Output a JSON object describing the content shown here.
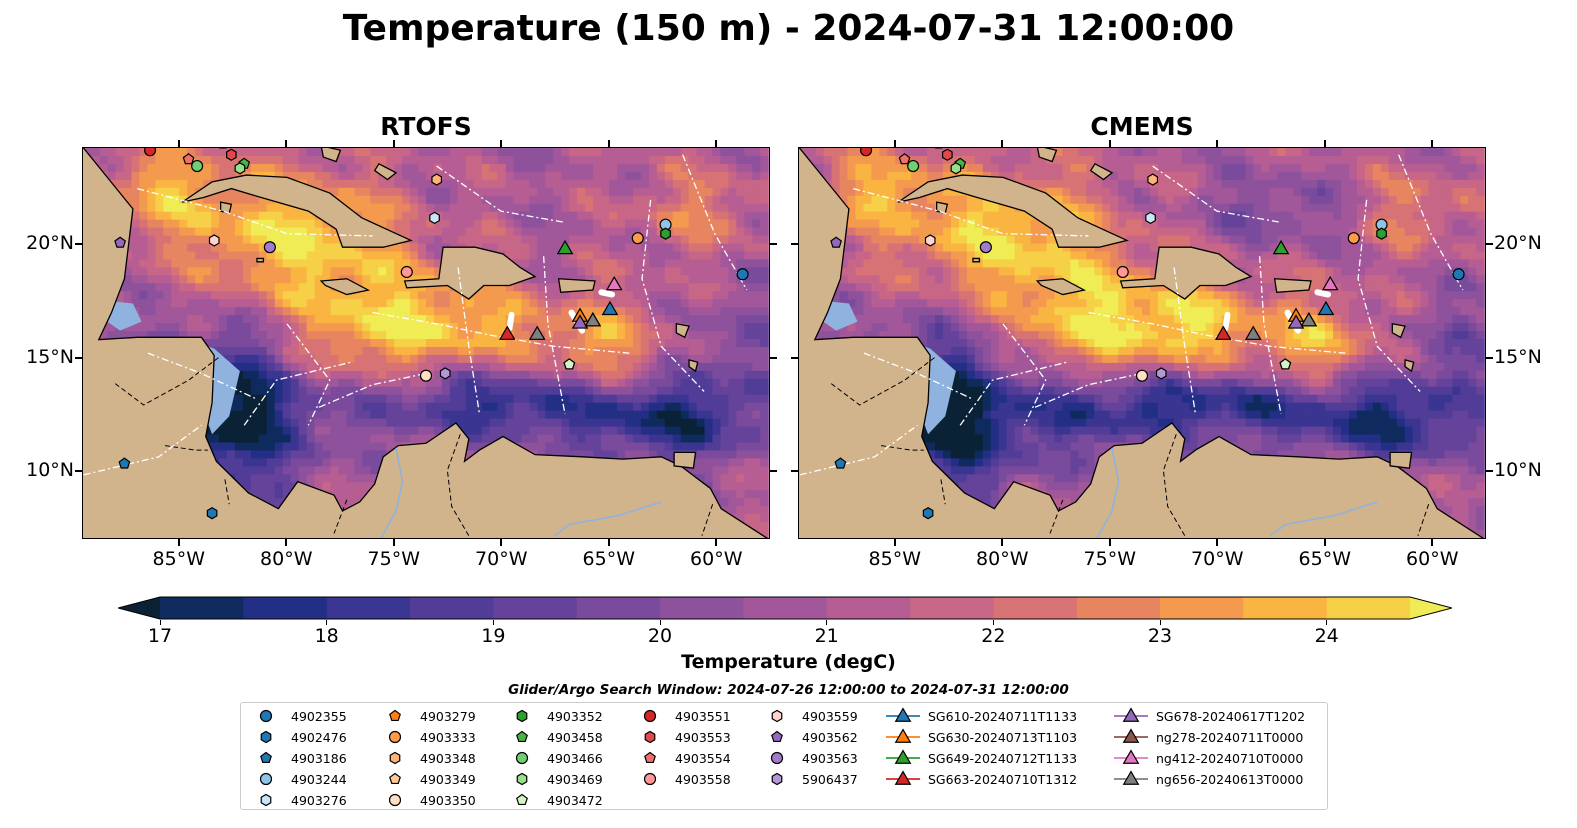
{
  "title": "Temperature (150 m) - 2024-07-31 12:00:00",
  "panels": [
    {
      "title": "RTOFS"
    },
    {
      "title": "CMEMS"
    }
  ],
  "axes": {
    "lon_range": [
      -89.5,
      -57.5
    ],
    "lat_range": [
      7,
      24.3
    ],
    "x_ticks": [
      "85°W",
      "80°W",
      "75°W",
      "70°W",
      "65°W",
      "60°W"
    ],
    "x_tick_values": [
      -85,
      -80,
      -75,
      -70,
      -65,
      -60
    ],
    "y_ticks": [
      "20°N",
      "15°N",
      "10°N"
    ],
    "y_tick_values": [
      20,
      15,
      10
    ]
  },
  "colorbar": {
    "label": "Temperature (degC)",
    "ticks": [
      "17",
      "18",
      "19",
      "20",
      "21",
      "22",
      "23",
      "24"
    ],
    "tick_values": [
      17,
      18,
      19,
      20,
      21,
      22,
      23,
      24
    ],
    "min": 17,
    "max": 24.5,
    "step": 0.5,
    "colors": [
      "#0b2236",
      "#0f2b5e",
      "#232f85",
      "#3a3591",
      "#513d97",
      "#65439a",
      "#7a4a9c",
      "#8e519b",
      "#a2579a",
      "#b65e93",
      "#c76686",
      "#d87375",
      "#e88561",
      "#f49a4f",
      "#f9b441",
      "#f6d046",
      "#f0ec55"
    ]
  },
  "legend": {
    "title": "Glider/Argo Search Window: 2024-07-26 12:00:00 to 2024-07-31 12:00:00",
    "items": [
      {
        "label": "4902355",
        "marker": "circle",
        "color": "#1f77b4"
      },
      {
        "label": "4902476",
        "marker": "hexagon",
        "color": "#1f77b4"
      },
      {
        "label": "4903186",
        "marker": "pentagon",
        "color": "#1f77b4"
      },
      {
        "label": "4903244",
        "marker": "circle",
        "color": "#8fc3e8"
      },
      {
        "label": "4903276",
        "marker": "hexagon",
        "color": "#c8e6f9"
      },
      {
        "label": "4903279",
        "marker": "pentagon",
        "color": "#ff7f0e"
      },
      {
        "label": "4903333",
        "marker": "circle",
        "color": "#ff9b4a"
      },
      {
        "label": "4903348",
        "marker": "hexagon",
        "color": "#ffb377"
      },
      {
        "label": "4903349",
        "marker": "pentagon",
        "color": "#ffc897"
      },
      {
        "label": "4903350",
        "marker": "circle",
        "color": "#ffe0c4"
      },
      {
        "label": "4903352",
        "marker": "hexagon",
        "color": "#2ca02c"
      },
      {
        "label": "4903458",
        "marker": "pentagon",
        "color": "#45b545"
      },
      {
        "label": "4903466",
        "marker": "circle",
        "color": "#6fd06f"
      },
      {
        "label": "4903469",
        "marker": "hexagon",
        "color": "#98df8a"
      },
      {
        "label": "4903472",
        "marker": "pentagon",
        "color": "#d2f5c8"
      },
      {
        "label": "4903551",
        "marker": "circle",
        "color": "#d62728"
      },
      {
        "label": "4903553",
        "marker": "hexagon",
        "color": "#e04a4b"
      },
      {
        "label": "4903554",
        "marker": "pentagon",
        "color": "#ef6e6e"
      },
      {
        "label": "4903558",
        "marker": "circle",
        "color": "#ff9896"
      },
      {
        "label": "4903559",
        "marker": "hexagon",
        "color": "#ffd3d0"
      },
      {
        "label": "4903562",
        "marker": "pentagon",
        "color": "#9467bd"
      },
      {
        "label": "4903563",
        "marker": "circle",
        "color": "#a27ccb"
      },
      {
        "label": "5906437",
        "marker": "hexagon",
        "color": "#b497db"
      },
      {
        "label": "SG610-20240711T1133",
        "marker": "triangle",
        "color": "#1f77b4"
      },
      {
        "label": "SG630-20240713T1103",
        "marker": "triangle",
        "color": "#ff7f0e"
      },
      {
        "label": "SG649-20240712T1133",
        "marker": "triangle",
        "color": "#2ca02c"
      },
      {
        "label": "SG663-20240710T1312",
        "marker": "triangle",
        "color": "#d62728"
      },
      {
        "label": "SG678-20240617T1202",
        "marker": "triangle",
        "color": "#9467bd"
      },
      {
        "label": "ng278-20240711T0000",
        "marker": "triangle",
        "color": "#8c564b"
      },
      {
        "label": "ng412-20240710T0000",
        "marker": "triangle",
        "color": "#e377c2"
      },
      {
        "label": "ng656-20240613T0000",
        "marker": "triangle",
        "color": "#7f7f7f"
      }
    ]
  },
  "markers": [
    {
      "label": "4902355",
      "lon": -58.7,
      "lat": 18.7
    },
    {
      "label": "4902476",
      "lon": -83.5,
      "lat": 8.1
    },
    {
      "label": "4903186",
      "lon": -87.6,
      "lat": 10.3
    },
    {
      "label": "4903244",
      "lon": -62.3,
      "lat": 20.9
    },
    {
      "label": "4903276",
      "lon": -73.1,
      "lat": 21.2
    },
    {
      "label": "4903279",
      "lon": -83.0,
      "lat": 24.5
    },
    {
      "label": "4903333",
      "lon": -63.6,
      "lat": 20.3
    },
    {
      "label": "4903348",
      "lon": -73.0,
      "lat": 22.9
    },
    {
      "label": "4903349",
      "lon": -66.8,
      "lat": 14.7
    },
    {
      "label": "4903350",
      "lon": -73.5,
      "lat": 14.2
    },
    {
      "label": "4903352",
      "lon": -62.3,
      "lat": 20.5
    },
    {
      "label": "4903458",
      "lon": -82.0,
      "lat": 23.6
    },
    {
      "label": "4903466",
      "lon": -84.2,
      "lat": 23.5
    },
    {
      "label": "4903469",
      "lon": -82.2,
      "lat": 23.4
    },
    {
      "label": "4903472",
      "lon": -66.8,
      "lat": 14.7
    },
    {
      "label": "4903551",
      "lon": -86.4,
      "lat": 24.2
    },
    {
      "label": "4903553",
      "lon": -82.6,
      "lat": 24.0
    },
    {
      "label": "4903554",
      "lon": -84.6,
      "lat": 23.8
    },
    {
      "label": "4903558",
      "lon": -74.4,
      "lat": 18.8
    },
    {
      "label": "4903559",
      "lon": -83.4,
      "lat": 20.2
    },
    {
      "label": "4903562",
      "lon": -87.8,
      "lat": 20.1
    },
    {
      "label": "4903563",
      "lon": -80.8,
      "lat": 19.9
    },
    {
      "label": "5906437",
      "lon": -72.6,
      "lat": 14.3
    },
    {
      "label": "SG610-20240711T1133",
      "lon": -64.9,
      "lat": 17.1
    },
    {
      "label": "SG630-20240713T1103",
      "lon": -66.3,
      "lat": 16.8
    },
    {
      "label": "SG649-20240712T1133",
      "lon": -67.0,
      "lat": 19.8
    },
    {
      "label": "SG663-20240710T1312",
      "lon": -69.7,
      "lat": 16.0
    },
    {
      "label": "SG678-20240617T1202",
      "lon": -66.3,
      "lat": 16.5
    },
    {
      "label": "ng278-20240711T0000",
      "lon": -65.7,
      "lat": 16.6
    },
    {
      "label": "ng412-20240710T0000",
      "lon": -64.7,
      "lat": 18.2
    },
    {
      "label": "ng656-20240613T0000",
      "lon": -65.7,
      "lat": 16.6
    },
    {
      "label": "ng656-20240613T0000",
      "lon": -68.3,
      "lat": 16.0
    }
  ]
}
